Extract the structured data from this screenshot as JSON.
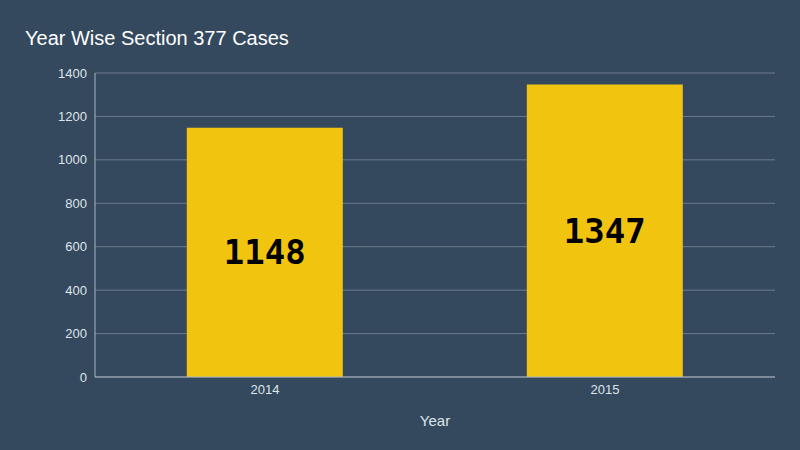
{
  "chart_data": {
    "type": "bar",
    "title": "Year Wise Section 377 Cases",
    "x_label": "Year",
    "categories": [
      "2014",
      "2015"
    ],
    "values": [
      1148,
      1347
    ],
    "color": "#f1c40f",
    "ylim": [
      0,
      1400
    ],
    "yticks": [
      0,
      200,
      400,
      600,
      800,
      1000,
      1200,
      1400
    ],
    "grid": true,
    "data_labels": true
  }
}
